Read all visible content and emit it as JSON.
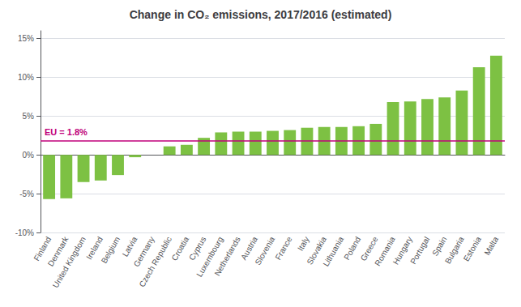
{
  "chart_data": {
    "type": "bar",
    "title": "Change in CO₂ emissions, 2017/2016 (estimated)",
    "categories": [
      "Finland",
      "Denmark",
      "United Kingdom",
      "Ireland",
      "Belgium",
      "Latvia",
      "Germany",
      "Czech Republic",
      "Croatia",
      "Cyprus",
      "Luxembourg",
      "Netherlands",
      "Austria",
      "Slovenia",
      "France",
      "Italy",
      "Slovakia",
      "Lithuania",
      "Poland",
      "Greece",
      "Romania",
      "Hungary",
      "Portugal",
      "Spain",
      "Bulgaria",
      "Estonia",
      "Malta"
    ],
    "values": [
      -5.7,
      -5.6,
      -3.5,
      -3.3,
      -2.6,
      -0.3,
      0.0,
      1.1,
      1.3,
      2.2,
      2.9,
      3.0,
      3.0,
      3.1,
      3.2,
      3.5,
      3.6,
      3.6,
      3.7,
      4.0,
      6.8,
      6.9,
      7.2,
      7.4,
      8.3,
      11.3,
      12.8
    ],
    "color": "#7DC143",
    "reference_line": {
      "value": 1.8,
      "label": "EU = 1.8%",
      "color": "#C0007A"
    },
    "ylim": [
      -10,
      16
    ],
    "yticks": [
      {
        "value": -10,
        "label": "-10%"
      },
      {
        "value": -5,
        "label": "-5%"
      },
      {
        "value": 0,
        "label": "0%"
      },
      {
        "value": 5,
        "label": "5%"
      },
      {
        "value": 10,
        "label": "10%"
      },
      {
        "value": 15,
        "label": "15%"
      }
    ],
    "grid": true
  }
}
